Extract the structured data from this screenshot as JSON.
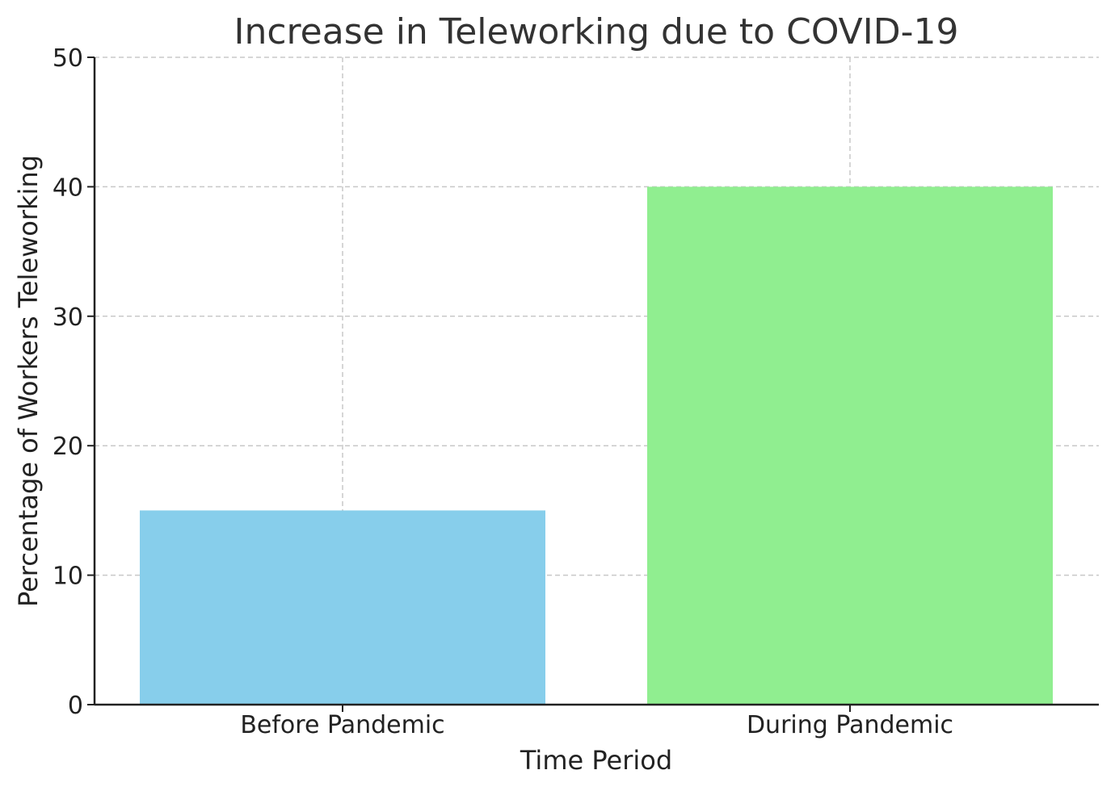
{
  "chart_data": {
    "type": "bar",
    "title": "Increase in Teleworking due to COVID-19",
    "xlabel": "Time Period",
    "ylabel": "Percentage of Workers Teleworking",
    "categories": [
      "Before Pandemic",
      "During Pandemic"
    ],
    "values": [
      15,
      40
    ],
    "colors": [
      "#87ceeb",
      "#90ee90"
    ],
    "ylim": [
      0,
      50
    ],
    "yticks": [
      "0",
      "10",
      "20",
      "30",
      "40",
      "50"
    ],
    "grid": true
  }
}
